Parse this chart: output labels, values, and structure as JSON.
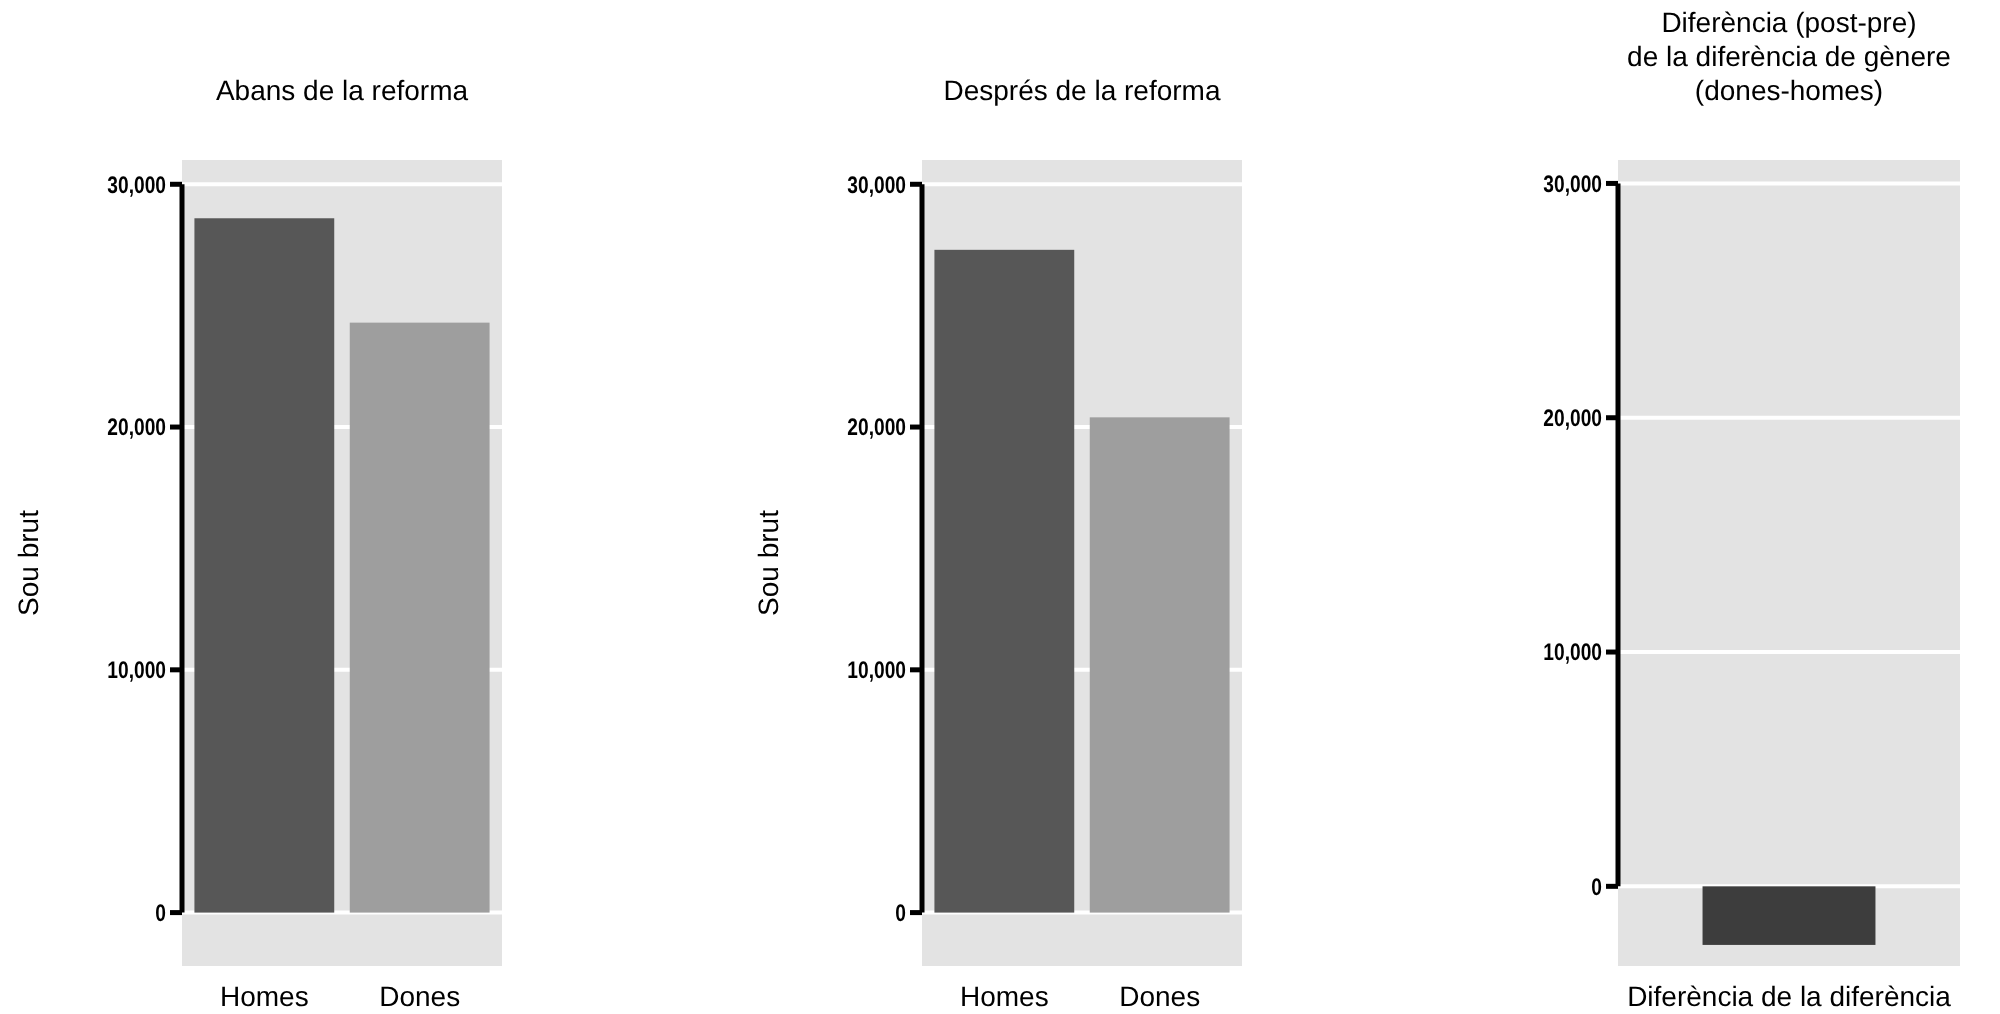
{
  "chart_data": [
    {
      "type": "bar",
      "title": "Abans de la reforma",
      "ylabel": "Sou brut",
      "categories": [
        "Homes",
        "Dones"
      ],
      "values": [
        28600,
        24300
      ],
      "colors": [
        "#575757",
        "#9e9e9e"
      ],
      "ylim": [
        -2200,
        31000
      ],
      "yticks": [
        {
          "value": 0,
          "label": "0"
        },
        {
          "value": 10000,
          "label": "10,000"
        },
        {
          "value": 20000,
          "label": "20,000"
        },
        {
          "value": 30000,
          "label": "30,000"
        }
      ],
      "grid": "y"
    },
    {
      "type": "bar",
      "title": "Després de la reforma",
      "ylabel": "Sou brut",
      "categories": [
        "Homes",
        "Dones"
      ],
      "values": [
        27300,
        20400
      ],
      "colors": [
        "#575757",
        "#9e9e9e"
      ],
      "ylim": [
        -2200,
        31000
      ],
      "yticks": [
        {
          "value": 0,
          "label": "0"
        },
        {
          "value": 10000,
          "label": "10,000"
        },
        {
          "value": 20000,
          "label": "20,000"
        },
        {
          "value": 30000,
          "label": "30,000"
        }
      ],
      "grid": "y"
    },
    {
      "type": "bar",
      "title": "Diferència (post-pre)\nde la diferència de gènere\n(dones-homes)",
      "categories": [
        "Diferència de la diferència"
      ],
      "values": [
        -2500
      ],
      "colors": [
        "#3d3d3d"
      ],
      "ylim": [
        -3400,
        31000
      ],
      "yticks": [
        {
          "value": 0,
          "label": "0"
        },
        {
          "value": 10000,
          "label": "10,000"
        },
        {
          "value": 20000,
          "label": "20,000"
        },
        {
          "value": 30000,
          "label": "30,000"
        }
      ],
      "grid": "y"
    }
  ]
}
